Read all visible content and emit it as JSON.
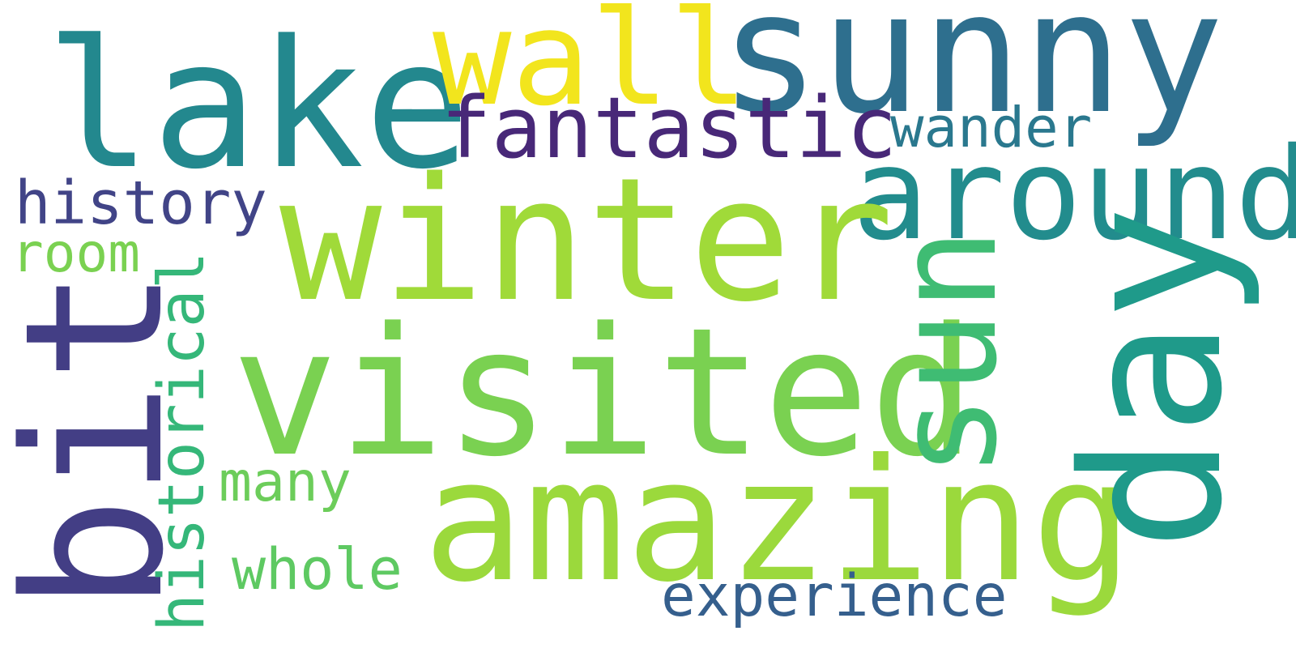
{
  "words": {
    "winter": {
      "text": "winter",
      "color": "#a0da39"
    },
    "visited": {
      "text": "visited",
      "color": "#7ad151"
    },
    "amazing": {
      "text": "amazing",
      "color": "#9bd93c"
    },
    "sunny": {
      "text": "sunny",
      "color": "#2e6f8e"
    },
    "lake": {
      "text": "lake",
      "color": "#23888e"
    },
    "bit": {
      "text": "bit",
      "color": "#433e85"
    },
    "day": {
      "text": "day",
      "color": "#1f9a8a"
    },
    "around": {
      "text": "around",
      "color": "#228c8d"
    },
    "wall": {
      "text": "wall",
      "color": "#f2e51d"
    },
    "sun": {
      "text": "sun",
      "color": "#3fbc73"
    },
    "fantastic": {
      "text": "fantastic",
      "color": "#482878"
    },
    "historical": {
      "text": "historical",
      "color": "#35b779"
    },
    "history": {
      "text": "history",
      "color": "#414487"
    },
    "experience": {
      "text": "experience",
      "color": "#355f8d"
    },
    "wander": {
      "text": "wander",
      "color": "#2a788e"
    },
    "room": {
      "text": "room",
      "color": "#7ad151"
    },
    "many": {
      "text": "many",
      "color": "#6ccd5a"
    },
    "whole": {
      "text": "whole",
      "color": "#5ec962"
    }
  }
}
